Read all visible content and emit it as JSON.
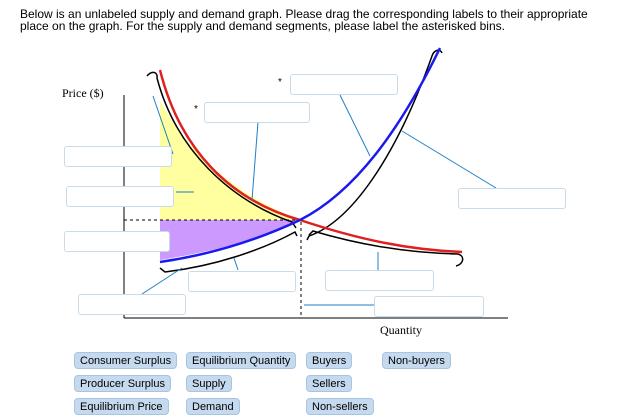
{
  "instructions": "Below is an unlabeled supply and demand graph. Please drag the corresponding labels to their appropriate place on the graph. For the supply and demand segments, please label the asterisked bins.",
  "graph": {
    "y_axis_label": "Price ($)",
    "x_axis_label": "Quantity",
    "asterisk": "*",
    "colors": {
      "consumer_area": "#ffff9f",
      "producer_area": "#cc99ff",
      "demand_curve": "#e02020",
      "supply_curve": "#1a1aee",
      "leader_line": "#1f7fc8"
    }
  },
  "label_bank": {
    "row1": [
      "Consumer Surplus",
      "Equilibrium Quantity",
      "Buyers",
      "Non-buyers"
    ],
    "row2": [
      "Producer Surplus",
      "Supply",
      "Sellers"
    ],
    "row3": [
      "Equilibrium Price",
      "Demand",
      "Non-sellers"
    ]
  }
}
